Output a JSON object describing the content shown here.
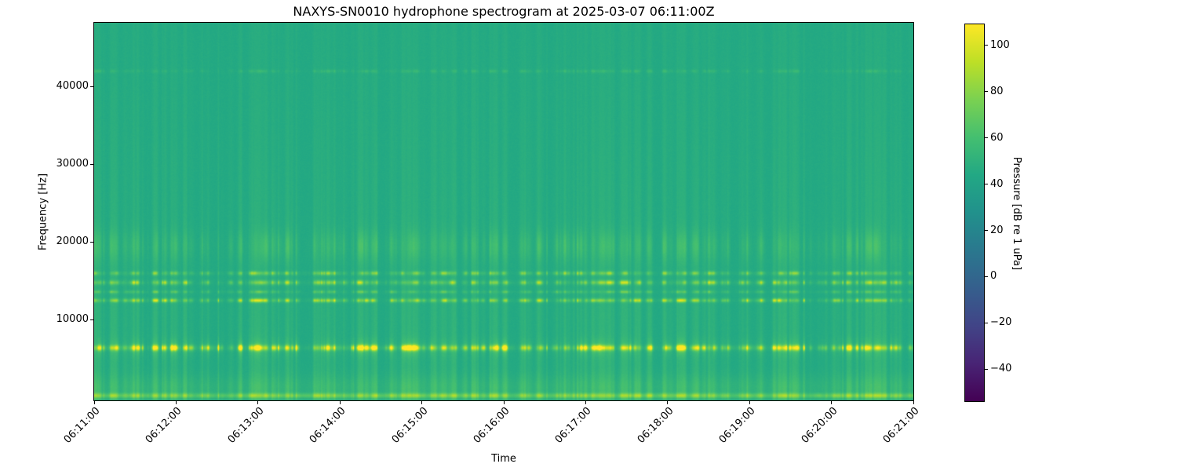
{
  "chart_data": {
    "type": "heatmap",
    "subtype": "spectrogram",
    "title": "NAXYS-SN0010 hydrophone spectrogram at 2025-03-07 06:11:00Z",
    "xlabel": "Time",
    "ylabel": "Frequency [Hz]",
    "x_tick_labels": [
      "06:11:00",
      "06:12:00",
      "06:13:00",
      "06:14:00",
      "06:15:00",
      "06:16:00",
      "06:17:00",
      "06:18:00",
      "06:19:00",
      "06:20:00",
      "06:21:00"
    ],
    "y_ticks": [
      {
        "value": 10000,
        "label": "10000"
      },
      {
        "value": 20000,
        "label": "20000"
      },
      {
        "value": 30000,
        "label": "30000"
      },
      {
        "value": 40000,
        "label": "40000"
      }
    ],
    "time_start": "06:11:00",
    "time_end": "06:21:00",
    "freq_range_hz": [
      0,
      48200
    ],
    "colorbar": {
      "label": "Pressure [dB re 1 uPa]",
      "colormap": "viridis",
      "vmin": -53.5,
      "vmax": 109.5,
      "ticks": [
        {
          "value": 100,
          "label": "100"
        },
        {
          "value": 80,
          "label": "80"
        },
        {
          "value": 60,
          "label": "60"
        },
        {
          "value": 40,
          "label": "40"
        },
        {
          "value": 20,
          "label": "20"
        },
        {
          "value": 0,
          "label": "0"
        },
        {
          "value": -20,
          "label": "−20"
        },
        {
          "value": -40,
          "label": "−40"
        }
      ]
    },
    "background_level_db": 45,
    "tonal_bands": [
      {
        "freq_hz": 6400,
        "bandwidth_hz": 550,
        "peak_db": 104,
        "note": "strongest band - bright intermittent pulses"
      },
      {
        "freq_hz": 12500,
        "bandwidth_hz": 400,
        "peak_db": 82
      },
      {
        "freq_hz": 13600,
        "bandwidth_hz": 320,
        "peak_db": 62
      },
      {
        "freq_hz": 14800,
        "bandwidth_hz": 470,
        "peak_db": 78
      },
      {
        "freq_hz": 16000,
        "bandwidth_hz": 420,
        "peak_db": 71
      },
      {
        "freq_hz": 19500,
        "bandwidth_hz": 3200,
        "peak_db": 54
      },
      {
        "freq_hz": 42000,
        "bandwidth_hz": 350,
        "peak_db": 52,
        "note": "faint continuous line"
      },
      {
        "freq_hz": 1300,
        "bandwidth_hz": 2600,
        "peak_db": 53
      },
      {
        "freq_hz": 250,
        "bandwidth_hz": 520,
        "peak_db": 74,
        "note": "thin bright line at bottom edge"
      }
    ],
    "broadband_impulses": "dense vertical striping from repetitive broadband transients across the whole record, stronger below 20 kHz",
    "viridis_stops": [
      "#440154",
      "#482475",
      "#414487",
      "#355f8d",
      "#2a788e",
      "#21918c",
      "#22a884",
      "#44bf70",
      "#7ad151",
      "#bddf26",
      "#fde725"
    ]
  }
}
